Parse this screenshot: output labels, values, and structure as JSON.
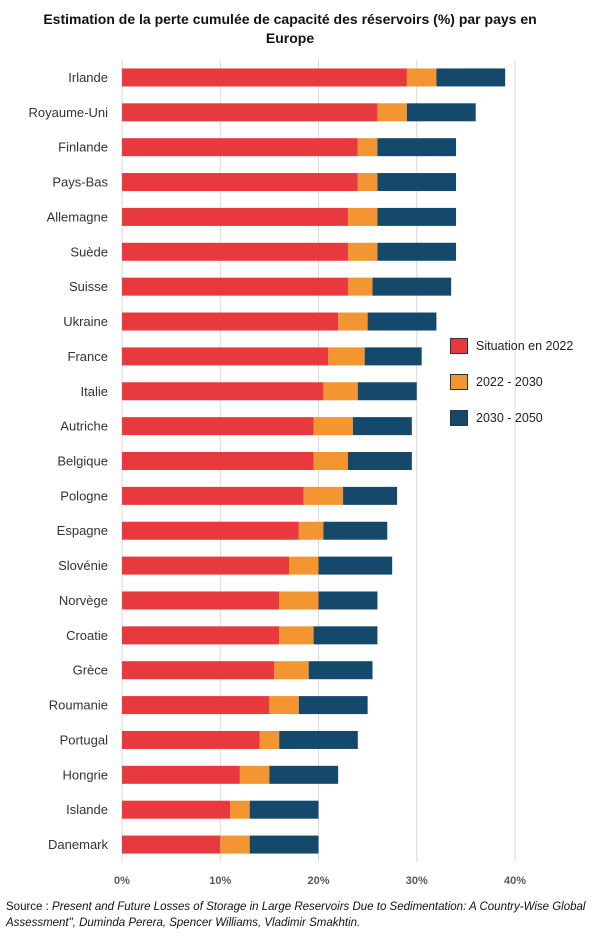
{
  "chart_data": {
    "type": "bar",
    "orientation": "horizontal",
    "stacked": true,
    "title": "Estimation de la perte cumulée de capacité des réservoirs (%) par pays en Europe",
    "categories": [
      "Irlande",
      "Royaume-Uni",
      "Finlande",
      "Pays-Bas",
      "Allemagne",
      "Suède",
      "Suisse",
      "Ukraine",
      "France",
      "Italie",
      "Autriche",
      "Belgique",
      "Pologne",
      "Espagne",
      "Slovénie",
      "Norvège",
      "Croatie",
      "Grèce",
      "Roumanie",
      "Portugal",
      "Hongrie",
      "Islande",
      "Danemark"
    ],
    "series": [
      {
        "name": "Situation en 2022",
        "color": "#e8393f",
        "values": [
          29,
          26,
          24,
          24,
          23,
          23,
          23,
          22,
          21,
          20.5,
          19.5,
          19.5,
          18.5,
          18,
          17,
          16,
          16,
          15.5,
          15,
          14,
          12,
          11,
          10
        ]
      },
      {
        "name": "2022 - 2030",
        "color": "#f39530",
        "values": [
          3,
          3,
          2,
          2,
          3,
          3,
          2.5,
          3,
          3.7,
          3.5,
          4,
          3.5,
          4,
          2.5,
          3,
          4,
          3.5,
          3.5,
          3,
          2,
          3,
          2,
          3
        ]
      },
      {
        "name": "2030 - 2050",
        "color": "#15496b",
        "values": [
          7,
          7,
          8,
          8,
          8,
          8,
          8,
          7,
          5.8,
          6,
          6,
          6.5,
          5.5,
          6.5,
          7.5,
          6,
          6.5,
          6.5,
          7,
          8,
          7,
          7,
          7
        ]
      }
    ],
    "xlim": [
      0,
      40
    ],
    "xticks": [
      "0%",
      "10%",
      "20%",
      "30%",
      "40%"
    ],
    "grid": true,
    "legend_position": "right"
  },
  "source": {
    "prefix": "Source : ",
    "text": "Present and Future Losses of Storage in Large Reservoirs Due to Sedimentation: A Country-Wise Global Assessment\", Duminda Perera, Spencer Williams, Vladimir Smakhtin."
  }
}
